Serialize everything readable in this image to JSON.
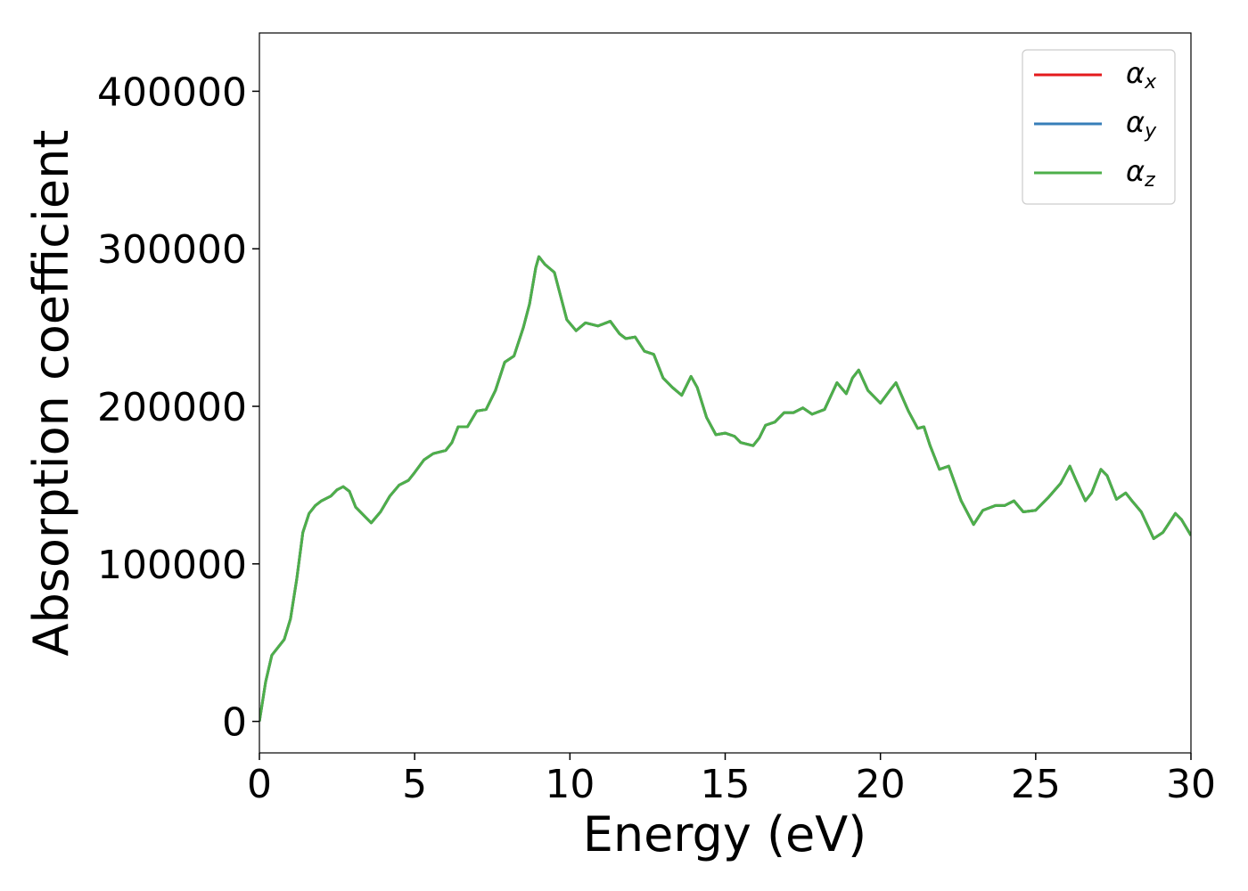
{
  "chart_data": {
    "type": "line",
    "xlabel": "Energy (eV)",
    "ylabel": "Absorption coefficient",
    "xlim": [
      0,
      30
    ],
    "xticks": [
      0,
      5,
      10,
      15,
      20,
      25,
      30
    ],
    "ylim": [
      -20000,
      437000
    ],
    "yticks": [
      0,
      100000,
      200000,
      300000,
      400000
    ],
    "legend": "upper right",
    "grid": false,
    "x": [
      0,
      0.2,
      0.4,
      0.6,
      0.8,
      1.0,
      1.2,
      1.4,
      1.6,
      1.8,
      2.0,
      2.3,
      2.5,
      2.7,
      2.9,
      3.1,
      3.4,
      3.6,
      3.9,
      4.2,
      4.5,
      4.8,
      5.0,
      5.3,
      5.6,
      6.0,
      6.2,
      6.4,
      6.7,
      7.0,
      7.3,
      7.6,
      7.9,
      8.2,
      8.5,
      8.7,
      8.9,
      9.0,
      9.2,
      9.5,
      9.7,
      9.9,
      10.2,
      10.5,
      10.9,
      11.3,
      11.6,
      11.8,
      12.1,
      12.4,
      12.7,
      13.0,
      13.3,
      13.6,
      13.9,
      14.1,
      14.4,
      14.7,
      15.0,
      15.3,
      15.5,
      15.9,
      16.1,
      16.3,
      16.6,
      16.9,
      17.2,
      17.5,
      17.8,
      18.2,
      18.6,
      18.9,
      19.1,
      19.3,
      19.6,
      20.0,
      20.3,
      20.5,
      20.9,
      21.2,
      21.4,
      21.6,
      21.9,
      22.2,
      22.6,
      23.0,
      23.3,
      23.7,
      24.0,
      24.3,
      24.6,
      25.0,
      25.4,
      25.8,
      26.1,
      26.3,
      26.6,
      26.8,
      27.1,
      27.3,
      27.6,
      27.9,
      28.1,
      28.4,
      28.8,
      29.1,
      29.5,
      29.7,
      30.0
    ],
    "series": [
      {
        "name": "αx",
        "color": "#e41a1c",
        "values": [
          0,
          25000,
          42000,
          47000,
          52000,
          65000,
          90000,
          120000,
          132000,
          137000,
          140000,
          143000,
          147000,
          149000,
          146000,
          136000,
          130000,
          126000,
          133000,
          143000,
          150000,
          153000,
          158000,
          166000,
          170000,
          172000,
          177000,
          187000,
          187000,
          197000,
          198000,
          210000,
          228000,
          232000,
          250000,
          265000,
          288000,
          295000,
          290000,
          285000,
          270000,
          255000,
          248000,
          253000,
          251000,
          254000,
          246000,
          243000,
          244000,
          235000,
          233000,
          218000,
          212000,
          207000,
          219000,
          212000,
          193000,
          182000,
          183000,
          181000,
          177000,
          175000,
          180000,
          188000,
          190000,
          196000,
          196000,
          199000,
          195000,
          198000,
          215000,
          208000,
          218000,
          223000,
          210000,
          202000,
          210000,
          215000,
          197000,
          186000,
          187000,
          175000,
          160000,
          162000,
          140000,
          125000,
          134000,
          137000,
          137000,
          140000,
          133000,
          134000,
          142000,
          151000,
          162000,
          153000,
          140000,
          145000,
          160000,
          156000,
          141000,
          145000,
          140000,
          133000,
          116000,
          120000,
          132000,
          128000,
          118000
        ]
      },
      {
        "name": "αy",
        "color": "#377eb8",
        "values": [
          0,
          25000,
          42000,
          47000,
          52000,
          65000,
          90000,
          120000,
          132000,
          137000,
          140000,
          143000,
          147000,
          149000,
          146000,
          136000,
          130000,
          126000,
          133000,
          143000,
          150000,
          153000,
          158000,
          166000,
          170000,
          172000,
          177000,
          187000,
          187000,
          197000,
          198000,
          210000,
          228000,
          232000,
          250000,
          265000,
          288000,
          295000,
          290000,
          285000,
          270000,
          255000,
          248000,
          253000,
          251000,
          254000,
          246000,
          243000,
          244000,
          235000,
          233000,
          218000,
          212000,
          207000,
          219000,
          212000,
          193000,
          182000,
          183000,
          181000,
          177000,
          175000,
          180000,
          188000,
          190000,
          196000,
          196000,
          199000,
          195000,
          198000,
          215000,
          208000,
          218000,
          223000,
          210000,
          202000,
          210000,
          215000,
          197000,
          186000,
          187000,
          175000,
          160000,
          162000,
          140000,
          125000,
          134000,
          137000,
          137000,
          140000,
          133000,
          134000,
          142000,
          151000,
          162000,
          153000,
          140000,
          145000,
          160000,
          156000,
          141000,
          145000,
          140000,
          133000,
          116000,
          120000,
          132000,
          128000,
          118000
        ]
      },
      {
        "name": "αz",
        "color": "#4daf4a",
        "values": [
          0,
          25000,
          42000,
          47000,
          52000,
          65000,
          90000,
          120000,
          132000,
          137000,
          140000,
          143000,
          147000,
          149000,
          146000,
          136000,
          130000,
          126000,
          133000,
          143000,
          150000,
          153000,
          158000,
          166000,
          170000,
          172000,
          177000,
          187000,
          187000,
          197000,
          198000,
          210000,
          228000,
          232000,
          250000,
          265000,
          288000,
          295000,
          290000,
          285000,
          270000,
          255000,
          248000,
          253000,
          251000,
          254000,
          246000,
          243000,
          244000,
          235000,
          233000,
          218000,
          212000,
          207000,
          219000,
          212000,
          193000,
          182000,
          183000,
          181000,
          177000,
          175000,
          180000,
          188000,
          190000,
          196000,
          196000,
          199000,
          195000,
          198000,
          215000,
          208000,
          218000,
          223000,
          210000,
          202000,
          210000,
          215000,
          197000,
          186000,
          187000,
          175000,
          160000,
          162000,
          140000,
          125000,
          134000,
          137000,
          137000,
          140000,
          133000,
          134000,
          142000,
          151000,
          162000,
          153000,
          140000,
          145000,
          160000,
          156000,
          141000,
          145000,
          140000,
          133000,
          116000,
          120000,
          132000,
          128000,
          118000
        ]
      }
    ]
  }
}
